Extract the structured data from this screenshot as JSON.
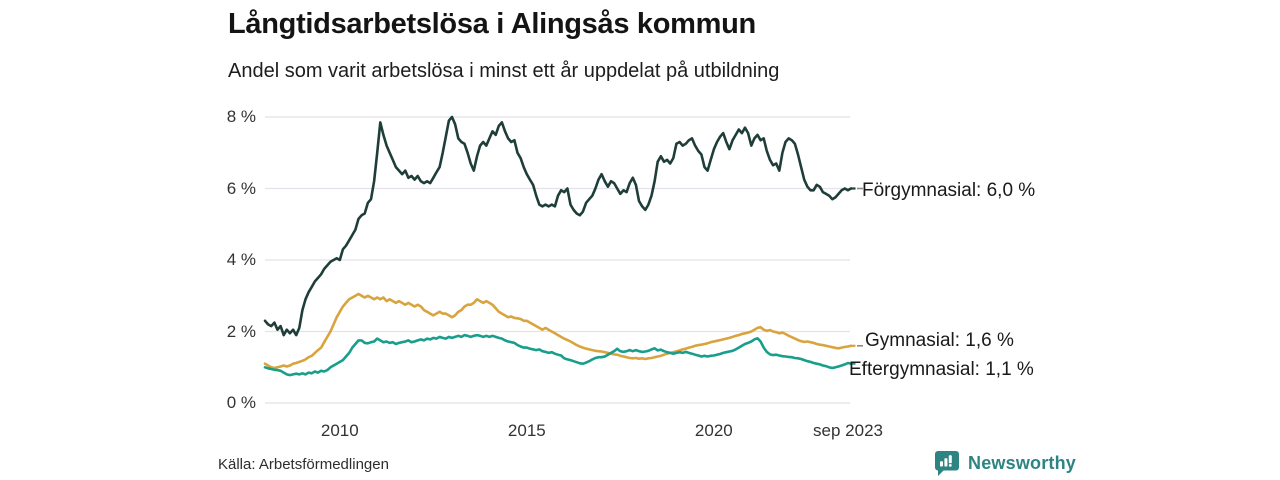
{
  "header": {
    "title": "Långtidsarbetslösa i Alingsås kommun",
    "subtitle": "Andel som varit arbetslösa i minst ett år uppdelat på utbildning"
  },
  "footer": {
    "source": "Källa: Arbetsförmedlingen",
    "brand": "Newsworthy"
  },
  "colors": {
    "forgymnasial": "#1f3e39",
    "gymnasial": "#d9a43e",
    "eftergymnasial": "#189e8b",
    "gridline": "#e2e2e8",
    "leader_dash": "#8a8a8a",
    "brand_teal": "#2e8383",
    "text_dark": "#141414",
    "axis_text": "#333333"
  },
  "chart_data": {
    "type": "line",
    "title": "Långtidsarbetslösa i Alingsås kommun",
    "subtitle": "Andel som varit arbetslösa i minst ett år uppdelat på utbildning",
    "unit": "%",
    "frequency": "monthly",
    "x_start": "2008-01",
    "x_end": "2023-09",
    "ylim": [
      0,
      8
    ],
    "grid": "horizontal-only",
    "legend_position": "right-end-labels",
    "y_ticks": [
      {
        "value": 0,
        "label": "0 %"
      },
      {
        "value": 2,
        "label": "2 %"
      },
      {
        "value": 4,
        "label": "4 %"
      },
      {
        "value": 6,
        "label": "6 %"
      },
      {
        "value": 8,
        "label": "8 %"
      }
    ],
    "x_ticks": [
      {
        "month_index": 24,
        "label": "2010"
      },
      {
        "month_index": 84,
        "label": "2015"
      },
      {
        "month_index": 144,
        "label": "2020"
      },
      {
        "month_index": 188,
        "label": "sep 2023"
      }
    ],
    "series": [
      {
        "name": "Förgymnasial",
        "end_label": "Förgymnasial: 6,0 %",
        "end_value_label": "6,0 %",
        "color": "#1f3e39",
        "leader_dash": true,
        "values": [
          2.3,
          2.2,
          2.15,
          2.25,
          2.05,
          2.15,
          1.9,
          2.05,
          1.95,
          2.05,
          1.9,
          2.1,
          2.6,
          2.9,
          3.1,
          3.25,
          3.4,
          3.5,
          3.6,
          3.75,
          3.85,
          3.95,
          4.0,
          4.05,
          4.0,
          4.3,
          4.4,
          4.55,
          4.7,
          4.85,
          5.15,
          5.25,
          5.3,
          5.6,
          5.7,
          6.2,
          7.0,
          7.85,
          7.5,
          7.2,
          7.0,
          6.8,
          6.6,
          6.5,
          6.4,
          6.5,
          6.3,
          6.35,
          6.25,
          6.35,
          6.2,
          6.15,
          6.2,
          6.15,
          6.3,
          6.45,
          6.6,
          7.0,
          7.45,
          7.9,
          8.0,
          7.8,
          7.4,
          7.3,
          7.25,
          7.0,
          6.7,
          6.5,
          6.9,
          7.2,
          7.3,
          7.2,
          7.4,
          7.6,
          7.5,
          7.75,
          7.85,
          7.6,
          7.4,
          7.3,
          7.35,
          7.0,
          6.85,
          6.6,
          6.4,
          6.25,
          6.1,
          5.8,
          5.55,
          5.5,
          5.55,
          5.5,
          5.55,
          5.5,
          5.8,
          5.95,
          5.9,
          6.0,
          5.55,
          5.4,
          5.3,
          5.25,
          5.35,
          5.6,
          5.7,
          5.8,
          6.0,
          6.25,
          6.4,
          6.2,
          6.05,
          6.2,
          6.15,
          6.0,
          5.85,
          5.95,
          5.9,
          6.15,
          6.3,
          6.1,
          5.65,
          5.5,
          5.4,
          5.55,
          5.8,
          6.2,
          6.75,
          6.9,
          6.75,
          6.8,
          6.7,
          6.85,
          7.25,
          7.3,
          7.2,
          7.25,
          7.35,
          7.4,
          7.2,
          7.05,
          6.95,
          6.6,
          6.5,
          6.8,
          7.1,
          7.3,
          7.45,
          7.55,
          7.3,
          7.1,
          7.35,
          7.5,
          7.65,
          7.55,
          7.7,
          7.55,
          7.2,
          7.4,
          7.5,
          7.35,
          7.4,
          7.05,
          6.8,
          6.65,
          6.7,
          6.5,
          7.0,
          7.3,
          7.4,
          7.35,
          7.25,
          6.95,
          6.6,
          6.25,
          6.05,
          5.95,
          5.95,
          6.1,
          6.05,
          5.9,
          5.85,
          5.8,
          5.7,
          5.75,
          5.85,
          5.95,
          6.0,
          5.95,
          6.0
        ]
      },
      {
        "name": "Gymnasial",
        "end_label": "Gymnasial: 1,6 %",
        "end_value_label": "1,6 %",
        "color": "#d9a43e",
        "leader_dash": true,
        "values": [
          1.1,
          1.05,
          1.0,
          0.98,
          1.0,
          1.02,
          1.05,
          1.02,
          1.05,
          1.1,
          1.12,
          1.15,
          1.18,
          1.22,
          1.28,
          1.32,
          1.4,
          1.48,
          1.55,
          1.7,
          1.85,
          2.0,
          2.2,
          2.4,
          2.55,
          2.7,
          2.8,
          2.9,
          2.95,
          3.0,
          3.05,
          3.0,
          2.95,
          3.0,
          2.95,
          2.9,
          2.95,
          2.9,
          2.95,
          2.85,
          2.9,
          2.85,
          2.8,
          2.85,
          2.8,
          2.75,
          2.8,
          2.75,
          2.7,
          2.75,
          2.7,
          2.6,
          2.55,
          2.5,
          2.45,
          2.5,
          2.55,
          2.5,
          2.5,
          2.45,
          2.4,
          2.45,
          2.55,
          2.6,
          2.7,
          2.75,
          2.75,
          2.8,
          2.9,
          2.85,
          2.8,
          2.85,
          2.8,
          2.75,
          2.65,
          2.55,
          2.5,
          2.45,
          2.4,
          2.42,
          2.38,
          2.37,
          2.35,
          2.3,
          2.3,
          2.25,
          2.2,
          2.15,
          2.1,
          2.05,
          2.1,
          2.05,
          2.0,
          1.95,
          1.9,
          1.85,
          1.8,
          1.76,
          1.72,
          1.67,
          1.62,
          1.58,
          1.55,
          1.52,
          1.5,
          1.48,
          1.46,
          1.45,
          1.44,
          1.42,
          1.4,
          1.38,
          1.36,
          1.35,
          1.32,
          1.3,
          1.28,
          1.26,
          1.25,
          1.26,
          1.24,
          1.25,
          1.23,
          1.25,
          1.26,
          1.28,
          1.3,
          1.32,
          1.35,
          1.38,
          1.4,
          1.42,
          1.45,
          1.47,
          1.5,
          1.52,
          1.55,
          1.57,
          1.6,
          1.62,
          1.63,
          1.65,
          1.67,
          1.7,
          1.72,
          1.74,
          1.76,
          1.78,
          1.8,
          1.82,
          1.85,
          1.88,
          1.9,
          1.93,
          1.95,
          1.97,
          2.0,
          2.05,
          2.1,
          2.12,
          2.05,
          2.02,
          2.04,
          2.0,
          1.98,
          1.95,
          1.97,
          1.93,
          1.88,
          1.84,
          1.8,
          1.76,
          1.73,
          1.71,
          1.72,
          1.7,
          1.68,
          1.65,
          1.63,
          1.62,
          1.6,
          1.58,
          1.56,
          1.54,
          1.53,
          1.55,
          1.57,
          1.58,
          1.6
        ]
      },
      {
        "name": "Eftergymnasial",
        "end_label": "Eftergymnasial: 1,1 %",
        "end_value_label": "1,1 %",
        "color": "#189e8b",
        "leader_dash": false,
        "values": [
          1.0,
          0.97,
          0.95,
          0.93,
          0.92,
          0.9,
          0.85,
          0.8,
          0.78,
          0.8,
          0.82,
          0.8,
          0.83,
          0.8,
          0.85,
          0.83,
          0.88,
          0.85,
          0.9,
          0.88,
          0.92,
          1.0,
          1.05,
          1.1,
          1.15,
          1.2,
          1.3,
          1.4,
          1.55,
          1.65,
          1.75,
          1.75,
          1.68,
          1.67,
          1.7,
          1.72,
          1.8,
          1.75,
          1.7,
          1.72,
          1.68,
          1.7,
          1.65,
          1.68,
          1.7,
          1.72,
          1.75,
          1.7,
          1.72,
          1.75,
          1.78,
          1.75,
          1.8,
          1.78,
          1.82,
          1.8,
          1.85,
          1.82,
          1.8,
          1.85,
          1.82,
          1.85,
          1.88,
          1.85,
          1.9,
          1.88,
          1.85,
          1.88,
          1.9,
          1.88,
          1.85,
          1.88,
          1.85,
          1.88,
          1.85,
          1.82,
          1.8,
          1.75,
          1.72,
          1.7,
          1.68,
          1.62,
          1.58,
          1.55,
          1.55,
          1.52,
          1.5,
          1.48,
          1.5,
          1.45,
          1.43,
          1.4,
          1.42,
          1.38,
          1.35,
          1.33,
          1.25,
          1.22,
          1.2,
          1.17,
          1.14,
          1.11,
          1.1,
          1.13,
          1.17,
          1.22,
          1.26,
          1.28,
          1.28,
          1.3,
          1.35,
          1.4,
          1.45,
          1.52,
          1.45,
          1.43,
          1.45,
          1.48,
          1.45,
          1.48,
          1.45,
          1.43,
          1.44,
          1.46,
          1.5,
          1.53,
          1.47,
          1.49,
          1.45,
          1.42,
          1.4,
          1.38,
          1.4,
          1.42,
          1.4,
          1.43,
          1.4,
          1.38,
          1.35,
          1.33,
          1.3,
          1.32,
          1.3,
          1.32,
          1.33,
          1.35,
          1.37,
          1.4,
          1.42,
          1.44,
          1.46,
          1.5,
          1.55,
          1.6,
          1.65,
          1.68,
          1.72,
          1.78,
          1.81,
          1.72,
          1.55,
          1.43,
          1.36,
          1.34,
          1.35,
          1.33,
          1.31,
          1.3,
          1.29,
          1.28,
          1.26,
          1.25,
          1.23,
          1.2,
          1.17,
          1.15,
          1.12,
          1.1,
          1.08,
          1.05,
          1.03,
          1.0,
          0.98,
          1.0,
          1.02,
          1.05,
          1.08,
          1.12,
          1.1
        ]
      }
    ]
  }
}
